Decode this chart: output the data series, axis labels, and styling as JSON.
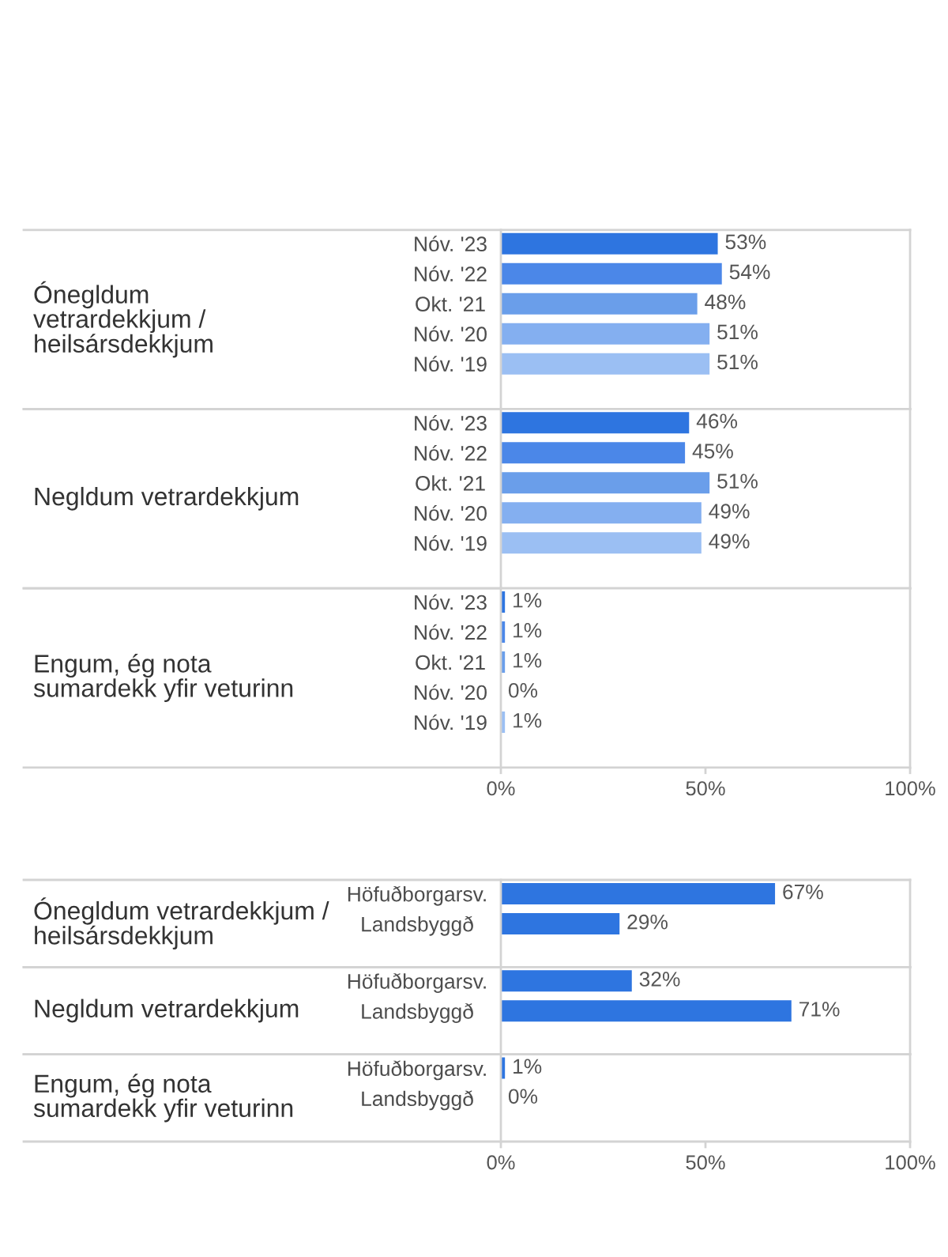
{
  "chart_data": [
    {
      "type": "bar",
      "orientation": "horizontal",
      "ylabel": "Ónegldum\nvetrardekkjum /\nheilsársdekkjum",
      "categories": [
        "Nóv. '23",
        "Nóv. '22",
        "Okt. '21",
        "Nóv. '20",
        "Nóv. '19"
      ],
      "values": [
        53,
        54,
        48,
        51,
        51
      ],
      "colors": [
        "#2e75e0",
        "#4b87e8",
        "#6a9eea",
        "#84aff0",
        "#9bbff3"
      ],
      "value_labels": [
        "53%",
        "54%",
        "48%",
        "51%",
        "51%"
      ],
      "xlim": [
        0,
        100
      ],
      "tick_labels": "y"
    },
    {
      "type": "bar",
      "orientation": "horizontal",
      "ylabel": "Negldum vetrardekkjum",
      "categories": [
        "Nóv. '23",
        "Nóv. '22",
        "Okt. '21",
        "Nóv. '20",
        "Nóv. '19"
      ],
      "values": [
        46,
        45,
        51,
        49,
        49
      ],
      "colors": [
        "#2e75e0",
        "#4b87e8",
        "#6a9eea",
        "#84aff0",
        "#9bbff3"
      ],
      "value_labels": [
        "46%",
        "45%",
        "51%",
        "49%",
        "49%"
      ],
      "xlim": [
        0,
        100
      ],
      "tick_labels": "y"
    },
    {
      "type": "bar",
      "orientation": "horizontal",
      "ylabel": "Engum, ég nota\nsumardekk yfir veturinn",
      "categories": [
        "Nóv. '23",
        "Nóv. '22",
        "Okt. '21",
        "Nóv. '20",
        "Nóv. '19"
      ],
      "values": [
        1,
        1,
        1,
        0,
        1
      ],
      "colors": [
        "#2e75e0",
        "#4b87e8",
        "#6a9eea",
        "#84aff0",
        "#9bbff3"
      ],
      "value_labels": [
        "1%",
        "1%",
        "1%",
        "0%",
        "1%"
      ],
      "xlim": [
        0,
        100
      ],
      "xticks": [
        {
          "value": 0,
          "label": "0%"
        },
        {
          "value": 50,
          "label": "50%"
        },
        {
          "value": 100,
          "label": "100%"
        }
      ]
    },
    {
      "type": "bar",
      "orientation": "horizontal",
      "ylabel": "Ónegldum vetrardekkjum /\nheilsársdekkjum",
      "categories": [
        "Höfuðborgarsv.",
        "Landsbyggð"
      ],
      "values": [
        67,
        29
      ],
      "color": "#2e75e0",
      "value_labels": [
        "67%",
        "29%"
      ],
      "xlim": [
        0,
        100
      ],
      "tick_labels": "y"
    },
    {
      "type": "bar",
      "orientation": "horizontal",
      "ylabel": "Negldum vetrardekkjum",
      "categories": [
        "Höfuðborgarsv.",
        "Landsbyggð"
      ],
      "values": [
        32,
        71
      ],
      "color": "#2e75e0",
      "value_labels": [
        "32%",
        "71%"
      ],
      "xlim": [
        0,
        100
      ],
      "tick_labels": "y"
    },
    {
      "type": "bar",
      "orientation": "horizontal",
      "ylabel": "Engum, ég nota\nsumardekk yfir veturinn",
      "categories": [
        "Höfuðborgarsv.",
        "Landsbyggð"
      ],
      "values": [
        1,
        0
      ],
      "color": "#2e75e0",
      "value_labels": [
        "1%",
        "0%"
      ],
      "xlim": [
        0,
        100
      ],
      "xticks": [
        {
          "value": 0,
          "label": "0%"
        },
        {
          "value": 50,
          "label": "50%"
        },
        {
          "value": 100,
          "label": "100%"
        }
      ]
    }
  ]
}
